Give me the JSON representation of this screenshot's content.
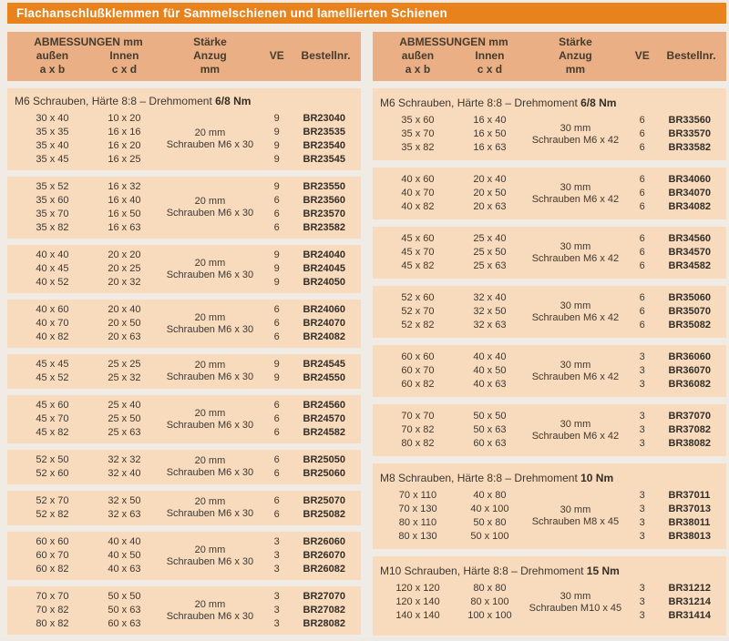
{
  "title": "Flachanschlußklemmen für Sammelschienen und lamellierten Schienen",
  "colors": {
    "accent_orange": "#e8821c",
    "header_bg": "#eaaf85",
    "row_block_bg": "#f8dabc",
    "page_bg": "#f0ece5",
    "text": "#3e3831",
    "title_text": "#ffffff"
  },
  "table_header": {
    "abmessungen": "ABMESSUNGEN mm",
    "aussen": "außen",
    "aussen_sub": "a x b",
    "innen": "Innen",
    "innen_sub": "c x d",
    "staerke_line1": "Stärke",
    "staerke_line2": "Anzug",
    "staerke_line3": "mm",
    "ve": "VE",
    "bestellnr": "Bestellnr."
  },
  "columns": [
    {
      "name": "left",
      "blocks": [
        {
          "section": {
            "text": "M6 Schrauben, Härte 8:8 – Drehmoment",
            "bold": "6/8 Nm"
          },
          "staerke": [
            "20 mm",
            "Schrauben M6 x 30"
          ],
          "rows": [
            {
              "aussen": "30 x 40",
              "innen": "10 x 20",
              "ve": "9",
              "bestellnr": "BR23040"
            },
            {
              "aussen": "35 x 35",
              "innen": "16 x 16",
              "ve": "9",
              "bestellnr": "BR23535"
            },
            {
              "aussen": "35 x 40",
              "innen": "16 x 20",
              "ve": "9",
              "bestellnr": "BR23540"
            },
            {
              "aussen": "35 x 45",
              "innen": "16 x 25",
              "ve": "9",
              "bestellnr": "BR23545"
            }
          ]
        },
        {
          "staerke": [
            "20 mm",
            "Schrauben M6 x 30"
          ],
          "rows": [
            {
              "aussen": "35 x 52",
              "innen": "16 x 32",
              "ve": "9",
              "bestellnr": "BR23550"
            },
            {
              "aussen": "35 x 60",
              "innen": "16 x 40",
              "ve": "6",
              "bestellnr": "BR23560"
            },
            {
              "aussen": "35 x 70",
              "innen": "16 x 50",
              "ve": "6",
              "bestellnr": "BR23570"
            },
            {
              "aussen": "35 x 82",
              "innen": "16 x 63",
              "ve": "6",
              "bestellnr": "BR23582"
            }
          ]
        },
        {
          "staerke": [
            "20 mm",
            "Schrauben M6 x 30"
          ],
          "rows": [
            {
              "aussen": "40 x 40",
              "innen": "20 x 20",
              "ve": "9",
              "bestellnr": "BR24040"
            },
            {
              "aussen": "40 x 45",
              "innen": "20 x 25",
              "ve": "9",
              "bestellnr": "BR24045"
            },
            {
              "aussen": "40 x 52",
              "innen": "20 x 32",
              "ve": "9",
              "bestellnr": "BR24050"
            }
          ]
        },
        {
          "staerke": [
            "20 mm",
            "Schrauben M6 x 30"
          ],
          "rows": [
            {
              "aussen": "40 x 60",
              "innen": "20 x 40",
              "ve": "6",
              "bestellnr": "BR24060"
            },
            {
              "aussen": "40 x 70",
              "innen": "20 x 50",
              "ve": "6",
              "bestellnr": "BR24070"
            },
            {
              "aussen": "40 x 82",
              "innen": "20 x 63",
              "ve": "6",
              "bestellnr": "BR24082"
            }
          ]
        },
        {
          "staerke": [
            "20 mm",
            "Schrauben M6 x 30"
          ],
          "rows": [
            {
              "aussen": "45 x 45",
              "innen": "25 x 25",
              "ve": "9",
              "bestellnr": "BR24545"
            },
            {
              "aussen": "45 x 52",
              "innen": "25 x 32",
              "ve": "9",
              "bestellnr": "BR24550"
            }
          ]
        },
        {
          "staerke": [
            "20 mm",
            "Schrauben M6 x 30"
          ],
          "rows": [
            {
              "aussen": "45 x 60",
              "innen": "25 x 40",
              "ve": "6",
              "bestellnr": "BR24560"
            },
            {
              "aussen": "45 x 70",
              "innen": "25 x 50",
              "ve": "6",
              "bestellnr": "BR24570"
            },
            {
              "aussen": "45 x 82",
              "innen": "25 x 63",
              "ve": "6",
              "bestellnr": "BR24582"
            }
          ]
        },
        {
          "staerke": [
            "20 mm",
            "Schrauben M6 x 30"
          ],
          "rows": [
            {
              "aussen": "52 x 50",
              "innen": "32 x 32",
              "ve": "6",
              "bestellnr": "BR25050"
            },
            {
              "aussen": "52 x 60",
              "innen": "32 x 40",
              "ve": "6",
              "bestellnr": "BR25060"
            }
          ]
        },
        {
          "staerke": [
            "20 mm",
            "Schrauben M6 x 30"
          ],
          "rows": [
            {
              "aussen": "52 x 70",
              "innen": "32 x 50",
              "ve": "6",
              "bestellnr": "BR25070"
            },
            {
              "aussen": "52 x 82",
              "innen": "32 x 63",
              "ve": "6",
              "bestellnr": "BR25082"
            }
          ]
        },
        {
          "staerke": [
            "20 mm",
            "Schrauben M6 x 30"
          ],
          "rows": [
            {
              "aussen": "60 x 60",
              "innen": "40 x 40",
              "ve": "3",
              "bestellnr": "BR26060"
            },
            {
              "aussen": "60 x 70",
              "innen": "40 x 50",
              "ve": "3",
              "bestellnr": "BR26070"
            },
            {
              "aussen": "60 x 82",
              "innen": "40 x 63",
              "ve": "3",
              "bestellnr": "BR26082"
            }
          ]
        },
        {
          "staerke": [
            "20 mm",
            "Schrauben M6 x 30"
          ],
          "rows": [
            {
              "aussen": "70 x 70",
              "innen": "50 x 50",
              "ve": "3",
              "bestellnr": "BR27070"
            },
            {
              "aussen": "70 x 82",
              "innen": "50 x 63",
              "ve": "3",
              "bestellnr": "BR27082"
            },
            {
              "aussen": "80 x 82",
              "innen": "60 x 63",
              "ve": "3",
              "bestellnr": "BR28082"
            }
          ]
        }
      ]
    },
    {
      "name": "right",
      "blocks": [
        {
          "section": {
            "text": "M6 Schrauben, Härte 8:8 – Drehmoment",
            "bold": "6/8 Nm"
          },
          "staerke": [
            "30 mm",
            "Schrauben M6 x 42"
          ],
          "rows": [
            {
              "aussen": "35 x 60",
              "innen": "16 x 40",
              "ve": "6",
              "bestellnr": "BR33560"
            },
            {
              "aussen": "35 x 70",
              "innen": "16 x 50",
              "ve": "6",
              "bestellnr": "BR33570"
            },
            {
              "aussen": "35 x 82",
              "innen": "16 x 63",
              "ve": "6",
              "bestellnr": "BR33582"
            }
          ]
        },
        {
          "staerke": [
            "30 mm",
            "Schrauben M6 x 42"
          ],
          "rows": [
            {
              "aussen": "40 x 60",
              "innen": "20 x 40",
              "ve": "6",
              "bestellnr": "BR34060"
            },
            {
              "aussen": "40 x 70",
              "innen": "20 x 50",
              "ve": "6",
              "bestellnr": "BR34070"
            },
            {
              "aussen": "40 x 82",
              "innen": "20 x 63",
              "ve": "6",
              "bestellnr": "BR34082"
            }
          ]
        },
        {
          "staerke": [
            "30 mm",
            "Schrauben M6 x 42"
          ],
          "rows": [
            {
              "aussen": "45 x 60",
              "innen": "25 x 40",
              "ve": "6",
              "bestellnr": "BR34560"
            },
            {
              "aussen": "45 x 70",
              "innen": "25 x 50",
              "ve": "6",
              "bestellnr": "BR34570"
            },
            {
              "aussen": "45 x 82",
              "innen": "25 x 63",
              "ve": "6",
              "bestellnr": "BR34582"
            }
          ]
        },
        {
          "staerke": [
            "30 mm",
            "Schrauben M6 x 42"
          ],
          "rows": [
            {
              "aussen": "52 x 60",
              "innen": "32 x 40",
              "ve": "6",
              "bestellnr": "BR35060"
            },
            {
              "aussen": "52 x 70",
              "innen": "32 x 50",
              "ve": "6",
              "bestellnr": "BR35070"
            },
            {
              "aussen": "52 x 82",
              "innen": "32 x 63",
              "ve": "6",
              "bestellnr": "BR35082"
            }
          ]
        },
        {
          "staerke": [
            "30 mm",
            "Schrauben M6 x 42"
          ],
          "rows": [
            {
              "aussen": "60 x 60",
              "innen": "40 x 40",
              "ve": "3",
              "bestellnr": "BR36060"
            },
            {
              "aussen": "60 x 70",
              "innen": "40 x 50",
              "ve": "3",
              "bestellnr": "BR36070"
            },
            {
              "aussen": "60 x 82",
              "innen": "40 x 63",
              "ve": "3",
              "bestellnr": "BR36082"
            }
          ]
        },
        {
          "staerke": [
            "30 mm",
            "Schrauben M6 x 42"
          ],
          "rows": [
            {
              "aussen": "70 x 70",
              "innen": "50 x 50",
              "ve": "3",
              "bestellnr": "BR37070"
            },
            {
              "aussen": "70 x 82",
              "innen": "50 x 63",
              "ve": "3",
              "bestellnr": "BR37082"
            },
            {
              "aussen": "80 x 82",
              "innen": "60 x 63",
              "ve": "3",
              "bestellnr": "BR38082"
            }
          ]
        },
        {
          "section": {
            "text": "M8 Schrauben, Härte 8:8 – Drehmoment",
            "bold": "10 Nm"
          },
          "staerke": [
            "30 mm",
            "Schrauben M8 x 45"
          ],
          "rows": [
            {
              "aussen": "70 x 110",
              "innen": "40 x 80",
              "ve": "3",
              "bestellnr": "BR37011"
            },
            {
              "aussen": "70 x 130",
              "innen": "40 x 100",
              "ve": "3",
              "bestellnr": "BR37013"
            },
            {
              "aussen": "80 x 110",
              "innen": "50 x 80",
              "ve": "3",
              "bestellnr": "BR38011"
            },
            {
              "aussen": "80 x 130",
              "innen": "50 x 100",
              "ve": "3",
              "bestellnr": "BR38013"
            }
          ]
        },
        {
          "section": {
            "text": "M10 Schrauben, Härte 8:8 – Drehmoment",
            "bold": "15 Nm"
          },
          "staerke": [
            "30 mm",
            "Schrauben M10 x 45"
          ],
          "rows": [
            {
              "aussen": "120 x 120",
              "innen": "80 x 80",
              "ve": "3",
              "bestellnr": "BR31212"
            },
            {
              "aussen": "120 x 140",
              "innen": "80 x 100",
              "ve": "3",
              "bestellnr": "BR31214"
            },
            {
              "aussen": "140 x 140",
              "innen": "100 x 100",
              "ve": "3",
              "bestellnr": "BR31414"
            }
          ]
        }
      ]
    }
  ]
}
